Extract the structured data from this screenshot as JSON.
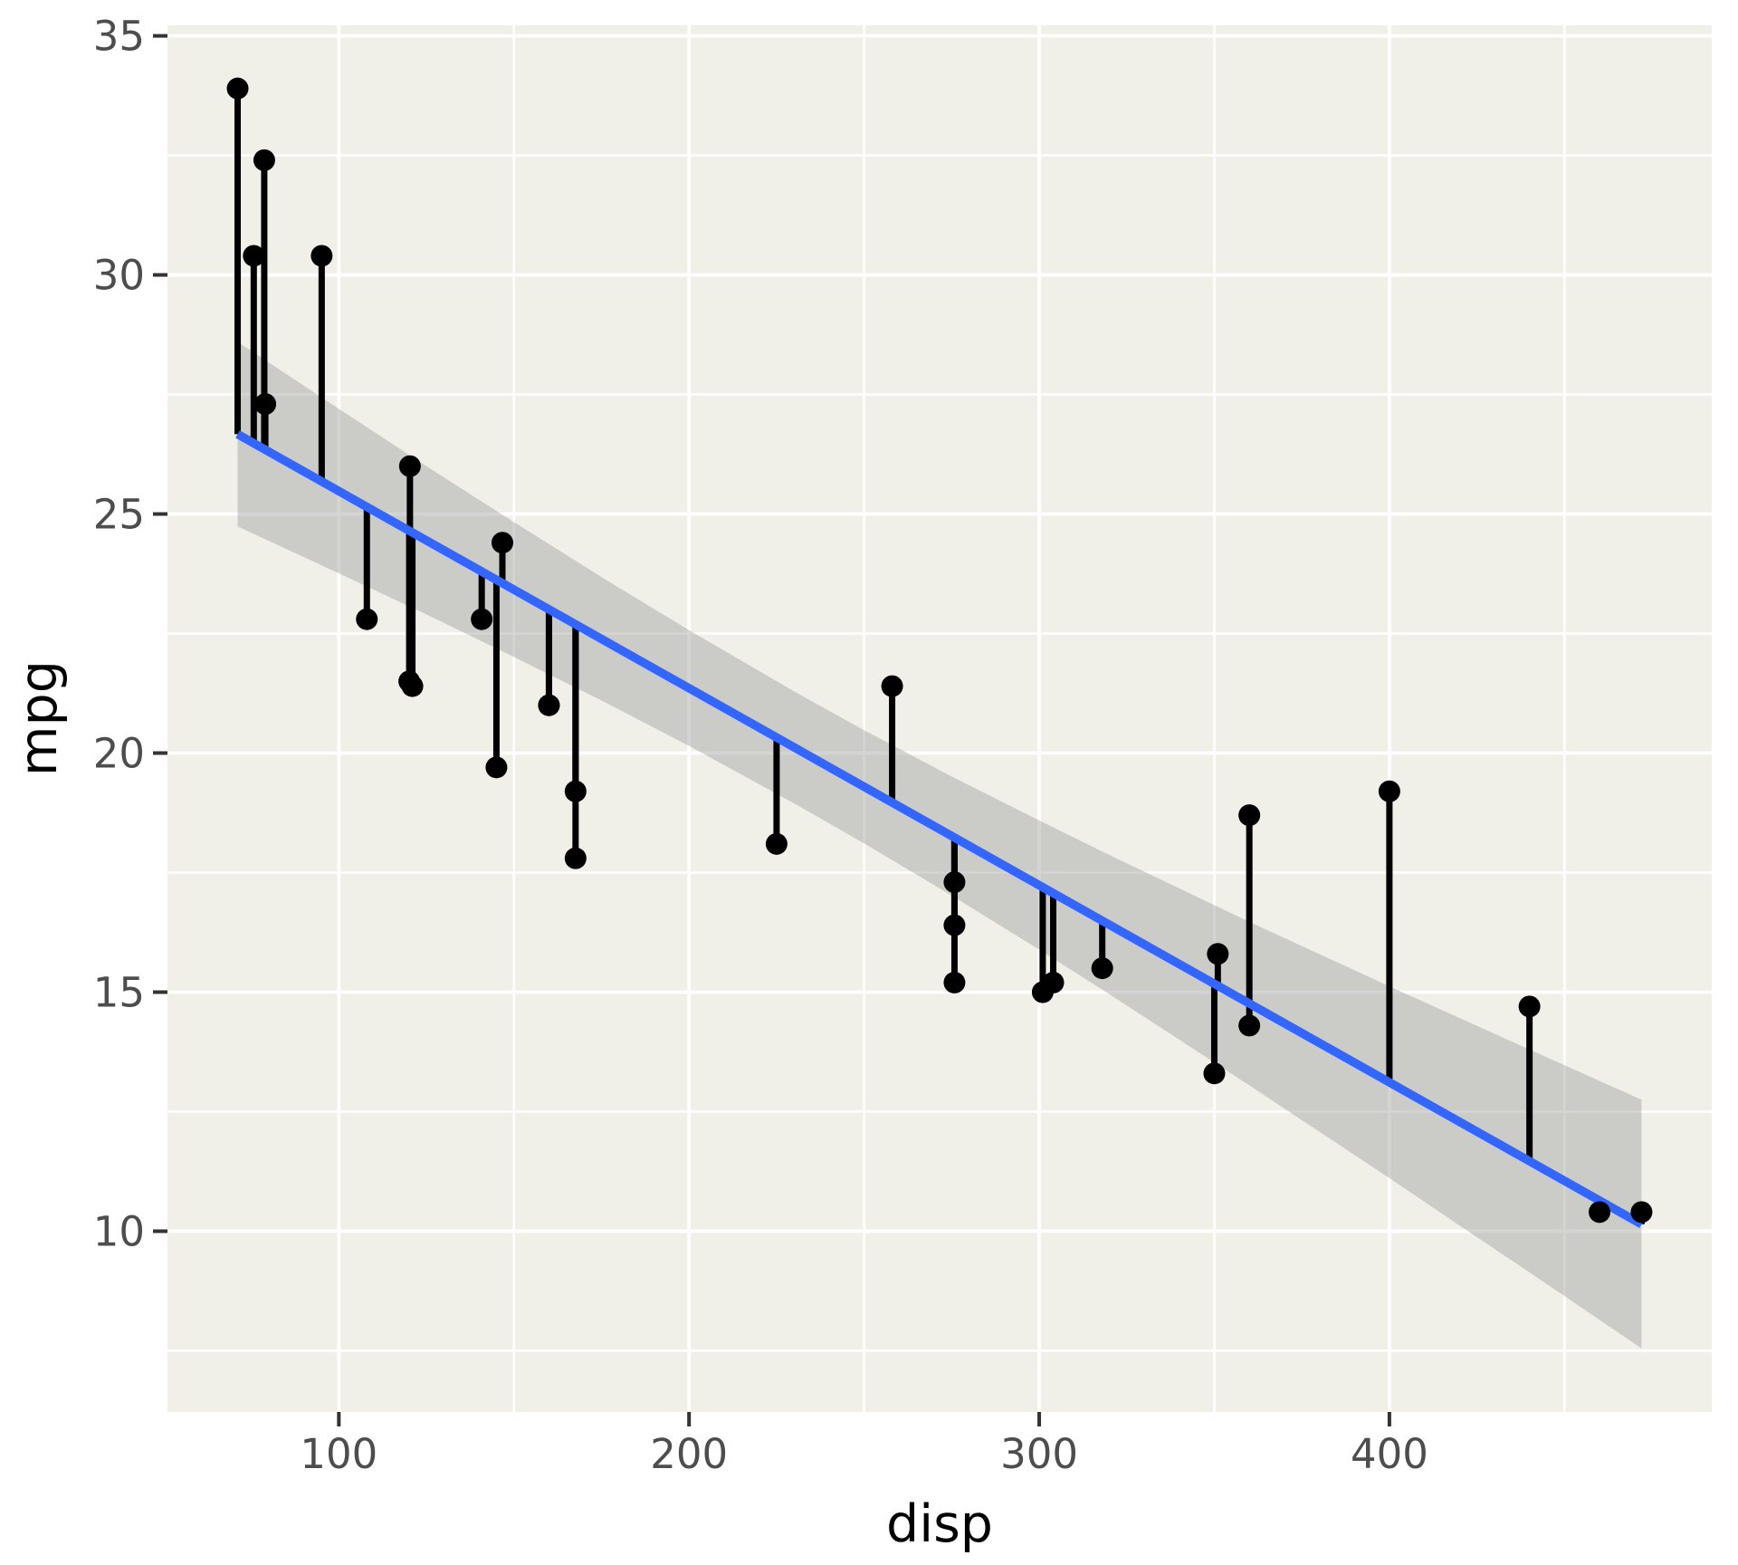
{
  "chart_data": {
    "type": "scatter",
    "title": "",
    "xlabel": "disp",
    "ylabel": "mpg",
    "x_ticks": [
      100,
      200,
      300,
      400
    ],
    "y_ticks": [
      10,
      15,
      20,
      25,
      30,
      35
    ],
    "x_minor_ticks": [
      150,
      250,
      350,
      450
    ],
    "y_minor_ticks": [
      7.5,
      12.5,
      17.5,
      22.5,
      27.5,
      32.5
    ],
    "xlim": [
      51.06,
      492.05
    ],
    "ylim": [
      6.22,
      35.22
    ],
    "grid": "on",
    "legend": "none",
    "points": [
      {
        "disp": 160.0,
        "mpg": 21.0
      },
      {
        "disp": 160.0,
        "mpg": 21.0
      },
      {
        "disp": 108.0,
        "mpg": 22.8
      },
      {
        "disp": 258.0,
        "mpg": 21.4
      },
      {
        "disp": 360.0,
        "mpg": 18.7
      },
      {
        "disp": 225.0,
        "mpg": 18.1
      },
      {
        "disp": 360.0,
        "mpg": 14.3
      },
      {
        "disp": 146.7,
        "mpg": 24.4
      },
      {
        "disp": 140.8,
        "mpg": 22.8
      },
      {
        "disp": 167.6,
        "mpg": 19.2
      },
      {
        "disp": 167.6,
        "mpg": 17.8
      },
      {
        "disp": 275.8,
        "mpg": 16.4
      },
      {
        "disp": 275.8,
        "mpg": 17.3
      },
      {
        "disp": 275.8,
        "mpg": 15.2
      },
      {
        "disp": 472.0,
        "mpg": 10.4
      },
      {
        "disp": 460.0,
        "mpg": 10.4
      },
      {
        "disp": 440.0,
        "mpg": 14.7
      },
      {
        "disp": 78.7,
        "mpg": 32.4
      },
      {
        "disp": 75.7,
        "mpg": 30.4
      },
      {
        "disp": 71.1,
        "mpg": 33.9
      },
      {
        "disp": 120.1,
        "mpg": 21.5
      },
      {
        "disp": 318.0,
        "mpg": 15.5
      },
      {
        "disp": 304.0,
        "mpg": 15.2
      },
      {
        "disp": 350.0,
        "mpg": 13.3
      },
      {
        "disp": 400.0,
        "mpg": 19.2
      },
      {
        "disp": 79.0,
        "mpg": 27.3
      },
      {
        "disp": 120.3,
        "mpg": 26.0
      },
      {
        "disp": 95.1,
        "mpg": 30.4
      },
      {
        "disp": 351.0,
        "mpg": 15.8
      },
      {
        "disp": 145.0,
        "mpg": 19.7
      },
      {
        "disp": 301.0,
        "mpg": 15.0
      },
      {
        "disp": 121.0,
        "mpg": 21.4
      }
    ],
    "fit": {
      "type": "linear",
      "intercept": 29.59985,
      "slope": -0.0412151,
      "x_range": [
        71.1,
        472.0
      ],
      "residual_segments": true
    },
    "ribbon": [
      {
        "x": 71.1,
        "lower": 24.74,
        "upper": 28.6
      },
      {
        "x": 100.0,
        "lower": 23.76,
        "upper": 27.2
      },
      {
        "x": 125.0,
        "lower": 22.9,
        "upper": 26.0
      },
      {
        "x": 150.0,
        "lower": 22.01,
        "upper": 24.83
      },
      {
        "x": 175.0,
        "lower": 21.1,
        "upper": 23.68
      },
      {
        "x": 200.0,
        "lower": 20.15,
        "upper": 22.57
      },
      {
        "x": 230.72,
        "lower": 18.92,
        "upper": 21.26
      },
      {
        "x": 250.0,
        "lower": 18.11,
        "upper": 20.48
      },
      {
        "x": 275.0,
        "lower": 17.02,
        "upper": 19.51
      },
      {
        "x": 300.0,
        "lower": 15.89,
        "upper": 18.59
      },
      {
        "x": 320.0,
        "lower": 14.96,
        "upper": 17.87
      },
      {
        "x": 360.0,
        "lower": 13.05,
        "upper": 16.47
      },
      {
        "x": 400.0,
        "lower": 11.11,
        "upper": 15.12
      },
      {
        "x": 420.0,
        "lower": 10.12,
        "upper": 14.46
      },
      {
        "x": 440.0,
        "lower": 9.14,
        "upper": 13.8
      },
      {
        "x": 472.0,
        "lower": 7.55,
        "upper": 12.75
      }
    ],
    "colors": {
      "outer_background": "#FFFFFF",
      "panel_background": "#F0EFE8",
      "gridline": "#FFFFFF",
      "ribbon_fill": "#999999",
      "ribbon_opacity": 0.42,
      "fit_line": "#3366FF",
      "point": "#000000",
      "segment": "#000000",
      "tick_mark": "#333333",
      "tick_label": "#4D4D4D",
      "axis_title": "#000000"
    }
  }
}
